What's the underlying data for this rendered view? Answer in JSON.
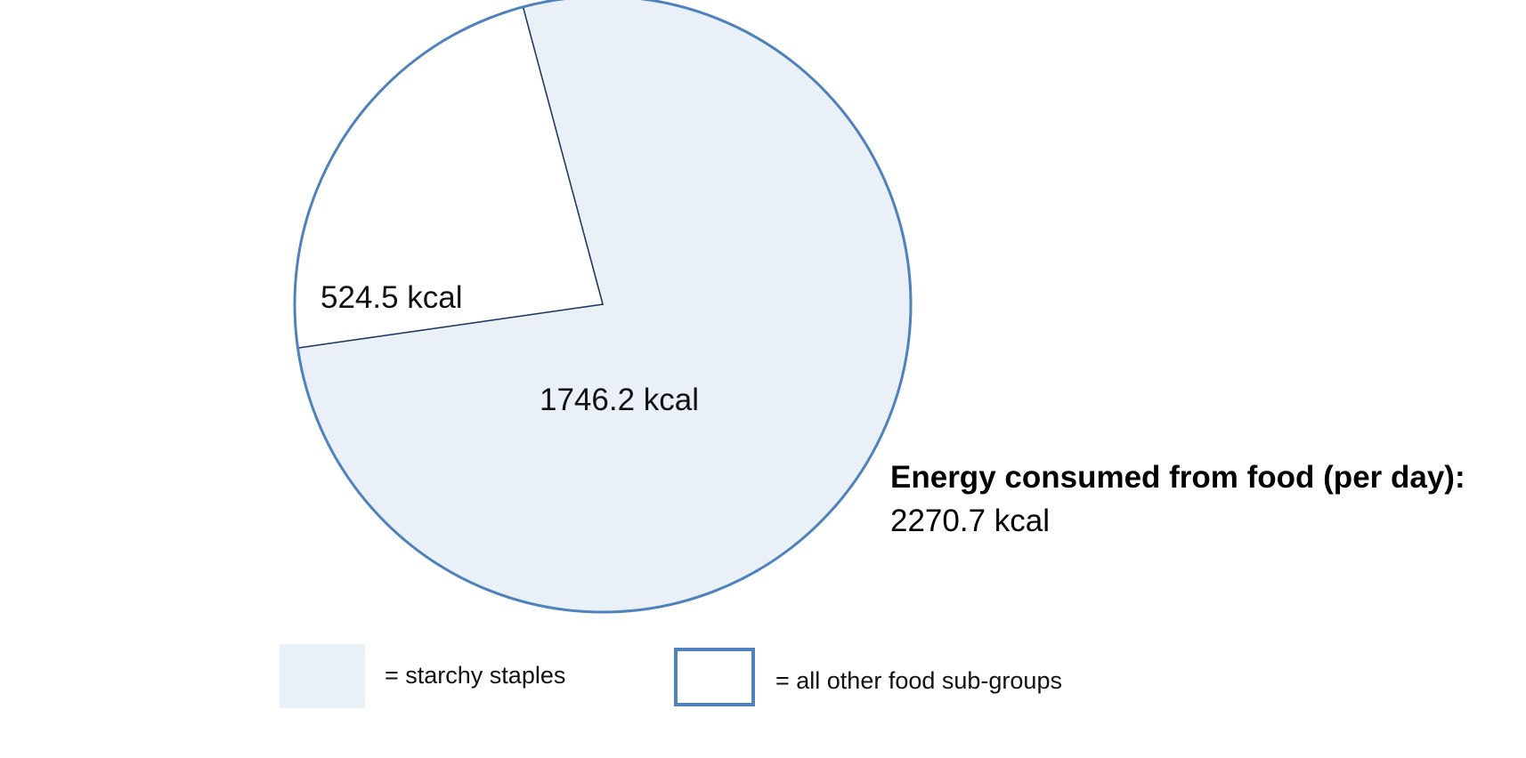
{
  "chart_data": {
    "type": "pie",
    "slices": [
      {
        "label": "1746.2 kcal",
        "value": 1746.2,
        "category": "starchy staples",
        "fill": "#eaf0f8"
      },
      {
        "label": "524.5 kcal",
        "value": 524.5,
        "category": "all other food sub-groups",
        "fill": "#ffffff"
      }
    ],
    "total": {
      "title": "Energy consumed from food (per day):",
      "value": "2270.7 kcal"
    },
    "legend": [
      {
        "text": "= starchy staples",
        "fill": "#eaf0f8",
        "border": "none"
      },
      {
        "text": "= all other food sub-groups",
        "fill": "#ffffff",
        "border": "#4f81bd"
      }
    ],
    "outline_color": "#4f81bd",
    "edge_color": "#1f3a5f"
  }
}
